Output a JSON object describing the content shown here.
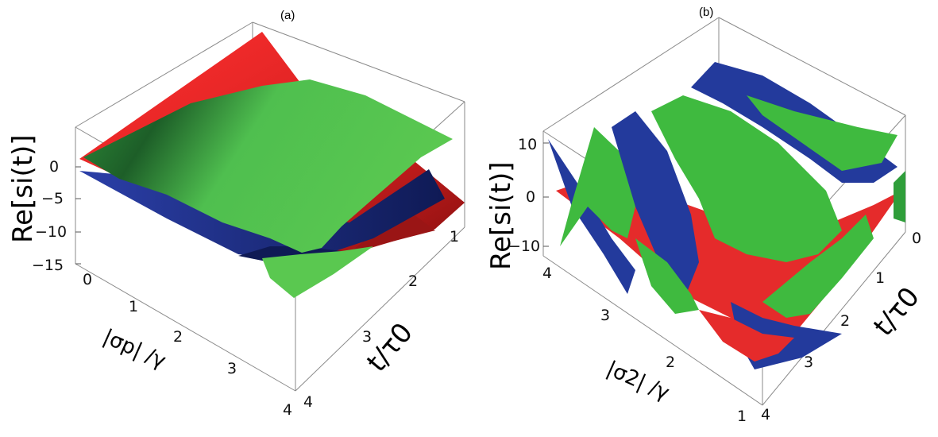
{
  "chart_data": [
    {
      "type": "surface3d",
      "panel_label": "(a)",
      "zlabel": "Re[s_i(t)]",
      "zlabel_display": "Re[si(t)]",
      "xlabel_display": "|σp| /γ",
      "ylabel_display": "t/τ0",
      "z_ticks": [
        "0",
        "−5",
        "−10",
        "−15"
      ],
      "x_ticks": [
        "0",
        "1",
        "2",
        "3",
        "4"
      ],
      "y_ticks": [
        "1",
        "2",
        "3",
        "4"
      ],
      "zlim": [
        -15,
        5
      ],
      "xlim": [
        0,
        4
      ],
      "ylim": [
        1,
        4
      ],
      "series": [
        {
          "color": "#e52b2b",
          "values": [
            [
              0,
              4
            ],
            [
              4,
              -7
            ]
          ]
        },
        {
          "color": "#1e2f8a",
          "values": [
            [
              -2,
              -9
            ],
            [
              -1,
              -10
            ]
          ]
        },
        {
          "color": "#3fba3f",
          "values": [
            [
              2,
              -11
            ],
            [
              4,
              -13
            ]
          ]
        }
      ]
    },
    {
      "type": "surface3d",
      "panel_label": "(b)",
      "zlabel": "Re[s_i(t)]",
      "zlabel_display": "Re[si(t)]",
      "xlabel_display": "|σ2| /γ",
      "ylabel_display": "t/τ0",
      "z_ticks": [
        "10",
        "0",
        "−10"
      ],
      "x_ticks": [
        "4",
        "3",
        "2",
        "1"
      ],
      "y_ticks": [
        "0",
        "1",
        "2",
        "3",
        "4"
      ],
      "zlim": [
        -10,
        10
      ],
      "xlim": [
        1,
        4
      ],
      "ylim": [
        0,
        4
      ],
      "series": [
        {
          "color": "#e52b2b",
          "values": [
            [
              -10,
              10
            ],
            [
              10,
              -10
            ]
          ]
        },
        {
          "color": "#1e2f8a",
          "values": [
            [
              10,
              -10
            ],
            [
              -10,
              10
            ]
          ]
        },
        {
          "color": "#3fba3f",
          "values": [
            [
              5,
              -5
            ],
            [
              -5,
              5
            ]
          ]
        }
      ]
    }
  ],
  "colors": {
    "red": "#e52b2b",
    "blue": "#1e2f8a",
    "green": "#3fba3f",
    "box": "#8a8a8a"
  }
}
